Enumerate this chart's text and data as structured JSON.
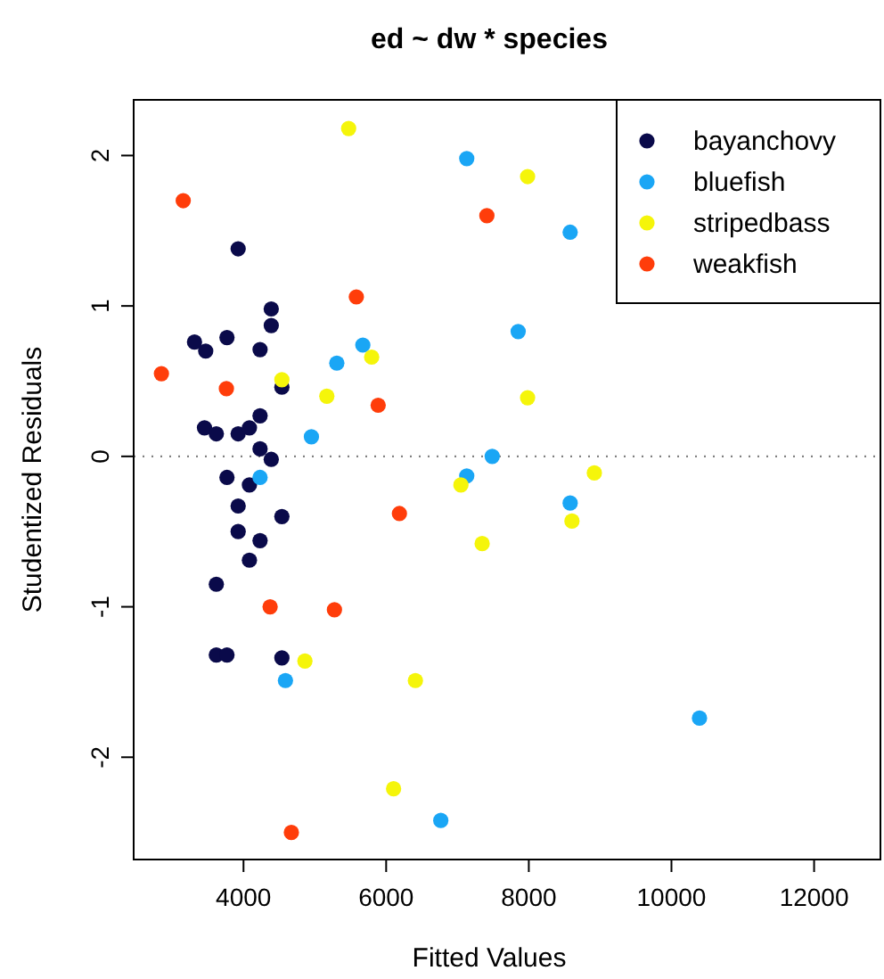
{
  "chart_data": {
    "type": "scatter",
    "title": "ed ~ dw * species",
    "xlabel": "Fitted Values",
    "ylabel": "Studentized Residuals",
    "xlim": [
      2460,
      12930
    ],
    "ylim": [
      -2.68,
      2.37
    ],
    "xticks": [
      4000,
      6000,
      8000,
      10000,
      12000
    ],
    "yticks": [
      -2,
      -1,
      0,
      1,
      2
    ],
    "marker": "circle",
    "legend": "top right",
    "grid": false,
    "ref_lines": [
      {
        "axis": "y",
        "value": 0,
        "color": "#808080",
        "line_style": "dotted"
      }
    ],
    "series": [
      {
        "name": "bayanchovy",
        "color": "#0a0a4a",
        "x": [
          3925,
          4389,
          4389,
          3313,
          3470,
          3768,
          4232,
          4538,
          4232,
          3453,
          3619,
          3925,
          4083,
          4232,
          4389,
          3768,
          4083,
          3925,
          4538,
          3925,
          4232,
          4083,
          3619,
          3619,
          3768,
          4538
        ],
        "values": [
          1.38,
          0.98,
          0.87,
          0.76,
          0.7,
          0.79,
          0.71,
          0.46,
          0.27,
          0.19,
          0.15,
          0.15,
          0.19,
          0.05,
          -0.02,
          -0.14,
          -0.19,
          -0.33,
          -0.4,
          -0.5,
          -0.56,
          -0.69,
          -0.85,
          -1.32,
          -1.32,
          -1.34
        ]
      },
      {
        "name": "bluefish",
        "color": "#1aa6f5",
        "x": [
          7130,
          8580,
          7851,
          5673,
          5308,
          4952,
          7487,
          7130,
          4232,
          8580,
          4588,
          10393,
          6766
        ],
        "values": [
          1.98,
          1.49,
          0.83,
          0.74,
          0.62,
          0.13,
          0.0,
          -0.13,
          -0.14,
          -0.31,
          -1.49,
          -1.74,
          -2.42
        ]
      },
      {
        "name": "stripedbass",
        "color": "#f5f50a",
        "x": [
          5474,
          7983,
          5797,
          4538,
          5168,
          7983,
          8919,
          7048,
          8605,
          7346,
          4861,
          6410,
          6104
        ],
        "values": [
          2.18,
          1.86,
          0.66,
          0.51,
          0.4,
          0.39,
          -0.11,
          -0.19,
          -0.43,
          -0.58,
          -1.36,
          -1.49,
          -2.21
        ]
      },
      {
        "name": "weakfish",
        "color": "#ff3d0a",
        "x": [
          3155,
          7412,
          5582,
          2849,
          3760,
          5888,
          6186,
          4373,
          5275,
          4671
        ],
        "values": [
          1.7,
          1.6,
          1.06,
          0.55,
          0.45,
          0.34,
          -0.38,
          -1.0,
          -1.02,
          -2.5
        ]
      }
    ]
  }
}
